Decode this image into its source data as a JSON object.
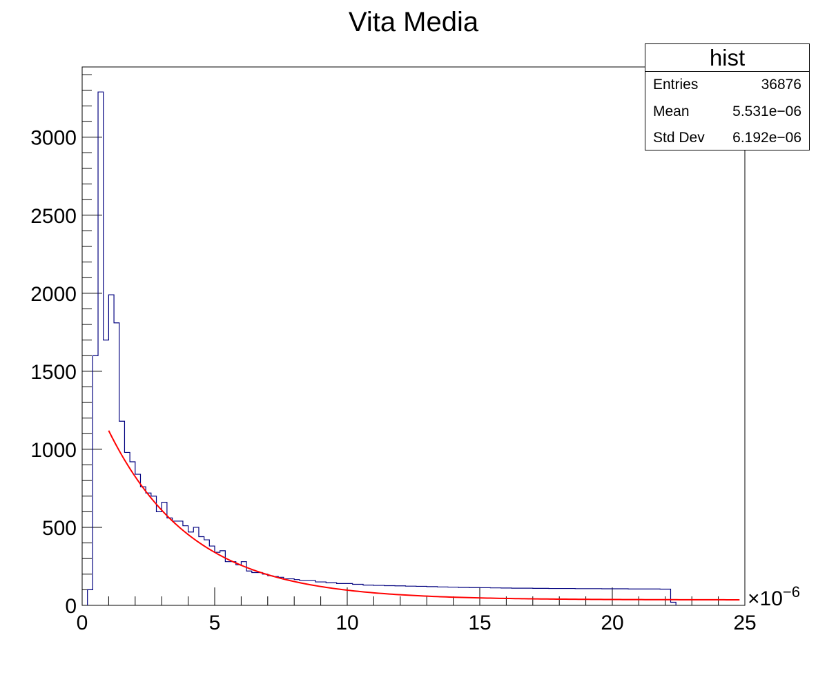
{
  "title": "Vita Media",
  "stats_box": {
    "name": "hist",
    "rows": [
      {
        "label": "Entries",
        "value": "36876"
      },
      {
        "label": "Mean",
        "value": "5.531e−06"
      },
      {
        "label": "Std Dev",
        "value": "6.192e−06"
      }
    ]
  },
  "chart_data": {
    "type": "histogram",
    "title": "Vita Media",
    "xlabel": "",
    "ylabel": "",
    "x_multiplier": "×10",
    "x_multiplier_exp": "−6",
    "xlim": [
      0,
      25
    ],
    "ylim": [
      0,
      3450
    ],
    "x_ticks": [
      0,
      5,
      10,
      15,
      20,
      25
    ],
    "y_ticks": [
      0,
      500,
      1000,
      1500,
      2000,
      2500,
      3000
    ],
    "bin_width": 0.2,
    "x_start": 0.2,
    "hist_color": "#00007f",
    "fit_color": "#ff0000",
    "counts": [
      100,
      1600,
      3290,
      1700,
      1990,
      1810,
      1180,
      980,
      920,
      840,
      760,
      720,
      700,
      600,
      660,
      560,
      540,
      540,
      510,
      470,
      500,
      440,
      420,
      380,
      340,
      350,
      280,
      280,
      260,
      280,
      220,
      210,
      210,
      200,
      190,
      185,
      180,
      170,
      170,
      165,
      160,
      160,
      160,
      150,
      150,
      145,
      145,
      140,
      140,
      140,
      135,
      135,
      130,
      130,
      128,
      128,
      126,
      126,
      125,
      125,
      123,
      123,
      122,
      122,
      120,
      120,
      118,
      118,
      117,
      117,
      115,
      115,
      114,
      114,
      113,
      113,
      112,
      112,
      111,
      111,
      110,
      110,
      110,
      110,
      109,
      109,
      109,
      108,
      108,
      108,
      108,
      108,
      107,
      107,
      107,
      107,
      107,
      106,
      106,
      106,
      106,
      106,
      105,
      105,
      105,
      105,
      105,
      105,
      104,
      104,
      20
    ],
    "fit": {
      "x_from": 1.0,
      "x_to": 24.8,
      "A": 1120,
      "tau": 3.15,
      "C": 35
    }
  }
}
